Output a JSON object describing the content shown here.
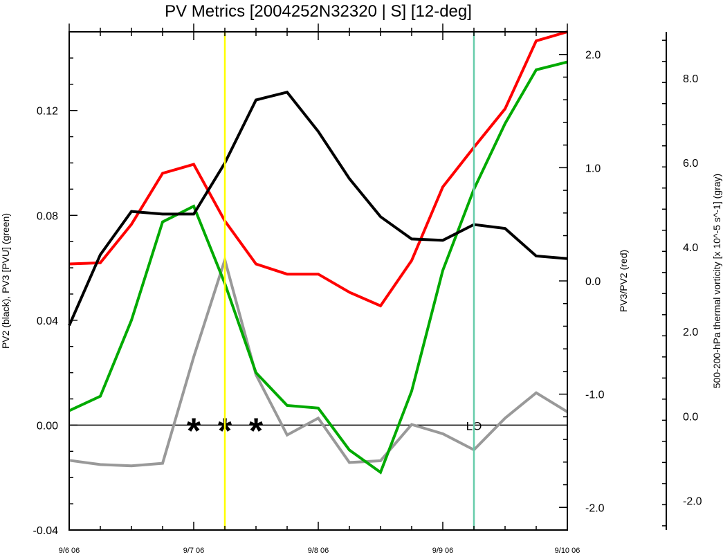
{
  "chart_data": {
    "type": "line",
    "title": "PV Metrics [2004252N32320 | S] [12-deg]",
    "ylabel_left": "PV2 (black), PV3 [PVU] (green)",
    "ylabel_right1": "PV3/PV2 (red)",
    "ylabel_right2": "500-200-hPa thermal vorticity [x 10^-5 s^-1] (gray)",
    "x_ticks": [
      "9/6 06",
      "9/7 06",
      "9/8 06",
      "9/9 06",
      "9/10 06"
    ],
    "x_step_hours": 6,
    "left_axis": {
      "ylim": [
        -0.04,
        0.15
      ],
      "ticks": [
        "-0.04",
        "0.00",
        "0.04",
        "0.08",
        "0.12"
      ],
      "tick_values": [
        -0.04,
        0.0,
        0.04,
        0.08,
        0.12
      ]
    },
    "right1_axis": {
      "ylim": [
        -2.2,
        2.2
      ],
      "ticks": [
        "-2.0",
        "-1.0",
        "0.0",
        "1.0",
        "2.0"
      ],
      "tick_values": [
        -2.0,
        -1.0,
        0.0,
        1.0,
        2.0
      ]
    },
    "right2_axis": {
      "ylim": [
        -2.7,
        9.1
      ],
      "ticks": [
        "-2.0",
        "0.0",
        "2.0",
        "4.0",
        "6.0",
        "8.0"
      ],
      "tick_values": [
        -2.0,
        0.0,
        2.0,
        4.0,
        6.0,
        8.0
      ]
    },
    "series": [
      {
        "color": "#000000",
        "axis": "left",
        "values": [
          0.038,
          0.065,
          0.0815,
          0.0805,
          0.0805,
          0.1,
          0.124,
          0.127,
          0.112,
          0.094,
          0.0795,
          0.071,
          0.0705,
          0.0765,
          0.075,
          0.0645,
          0.0635
        ]
      },
      {
        "color": "#00aa00",
        "axis": "left",
        "values": [
          0.0055,
          0.011,
          0.04,
          0.0775,
          0.0835,
          0.054,
          0.02,
          0.0075,
          0.0065,
          -0.0095,
          -0.018,
          0.013,
          0.059,
          0.09,
          0.115,
          0.1355,
          0.1385
        ]
      },
      {
        "color": "#ff0000",
        "axis": "right1",
        "values": [
          0.15,
          0.16,
          0.5,
          0.95,
          1.03,
          0.53,
          0.15,
          0.06,
          0.06,
          -0.1,
          -0.22,
          0.18,
          0.83,
          1.18,
          1.52,
          2.12,
          2.2
        ]
      },
      {
        "color": "#999999",
        "axis": "right2",
        "values": [
          -1.05,
          -1.15,
          -1.18,
          -1.12,
          1.4,
          3.7,
          0.98,
          -0.45,
          -0.05,
          -1.1,
          -1.06,
          -0.2,
          -0.42,
          -0.8,
          -0.05,
          0.55,
          0.1
        ]
      }
    ],
    "vertical_lines": [
      {
        "x_index": 5,
        "color": "#ffff00"
      },
      {
        "x_index": 13,
        "color": "#66ccaa"
      }
    ],
    "markers": [
      {
        "text": "*",
        "x_index": 4
      },
      {
        "text": "*",
        "x_index": 5
      },
      {
        "text": "*",
        "x_index": 6
      }
    ],
    "annotation": {
      "text": "LO",
      "x_index": 13
    },
    "zero_line": true,
    "grid": false,
    "legend": "none"
  }
}
